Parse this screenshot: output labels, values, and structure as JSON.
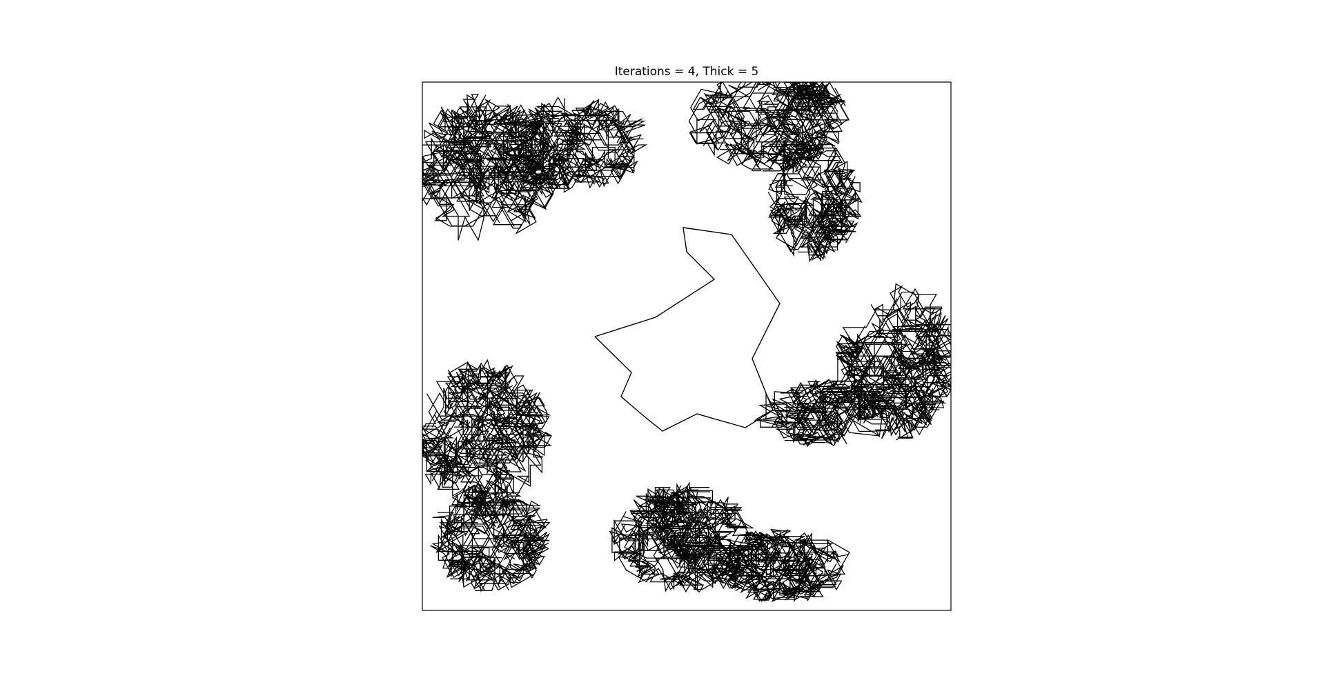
{
  "chart_data": {
    "type": "line",
    "title": "Iterations = 4, Thick = 5",
    "xlabel": "",
    "ylabel": "",
    "axes_visible": false,
    "ticks": "none",
    "grid": false,
    "legend": "none",
    "line_color": "#000000",
    "curve": "fractal random-walk path, 4 iterations"
  }
}
